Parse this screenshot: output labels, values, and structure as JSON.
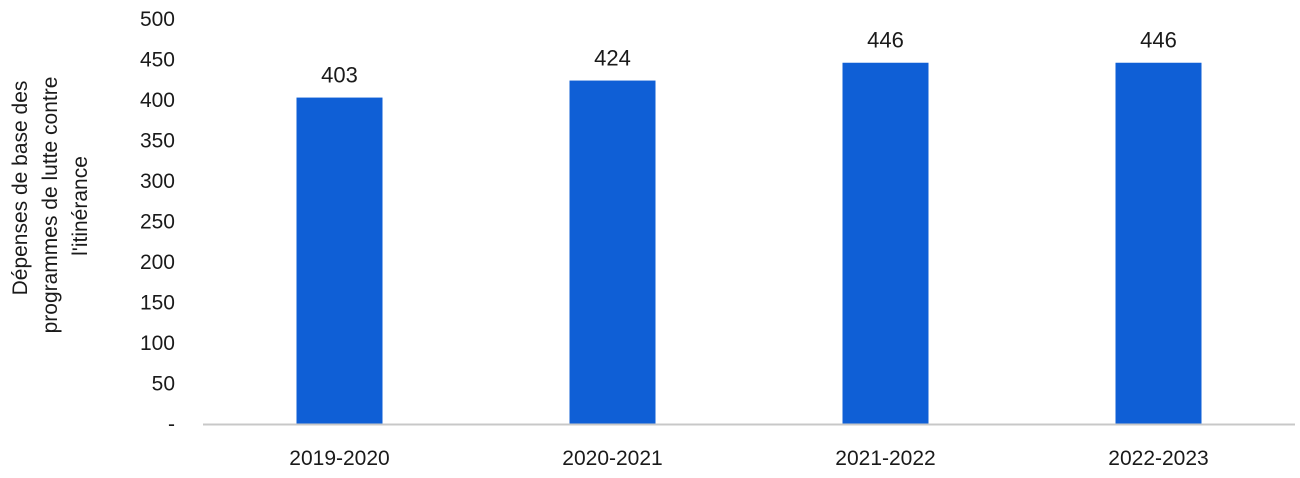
{
  "chart_data": {
    "type": "bar",
    "title": "",
    "xlabel": "",
    "ylabel_lines": [
      "Dépenses de base des",
      "programmes de lutte contre",
      "l'itinérance"
    ],
    "categories": [
      "2019-2020",
      "2020-2021",
      "2021-2022",
      "2022-2023"
    ],
    "values": [
      403,
      424,
      446,
      446
    ],
    "data_labels": [
      "403",
      "424",
      "446",
      "446"
    ],
    "ylim": [
      0,
      500
    ],
    "yticks": [
      0,
      50,
      100,
      150,
      200,
      250,
      300,
      350,
      400,
      450,
      500
    ],
    "ytick_labels": [
      "-",
      "50",
      "100",
      "150",
      "200",
      "250",
      "300",
      "350",
      "400",
      "450",
      "500"
    ],
    "bar_color": "#0f5fd6",
    "axis_color": "#c8c8c8",
    "grid": false,
    "legend": "none"
  }
}
